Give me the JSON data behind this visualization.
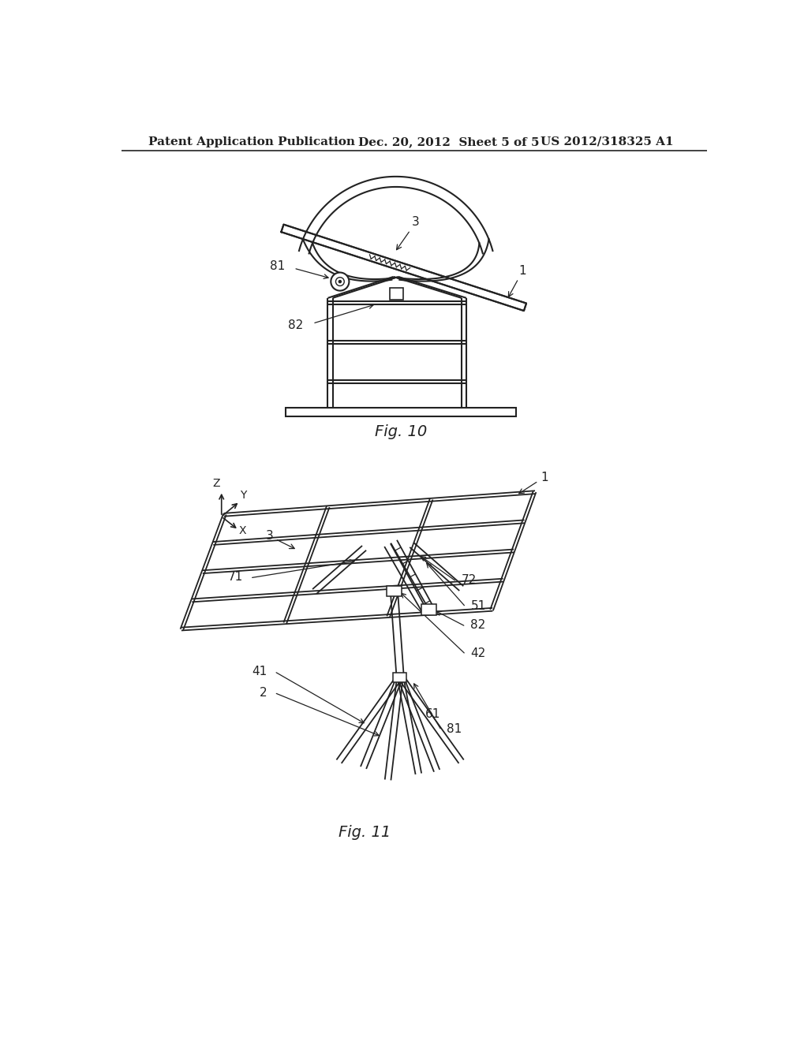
{
  "bg_color": "#ffffff",
  "line_color": "#222222",
  "header_left": "Patent Application Publication",
  "header_mid": "Dec. 20, 2012  Sheet 5 of 5",
  "header_right": "US 2012/318325 A1",
  "fig10_label": "Fig. 10",
  "fig11_label": "Fig. 11",
  "header_fontsize": 11,
  "fig_label_fontsize": 14,
  "annotation_fontsize": 11
}
